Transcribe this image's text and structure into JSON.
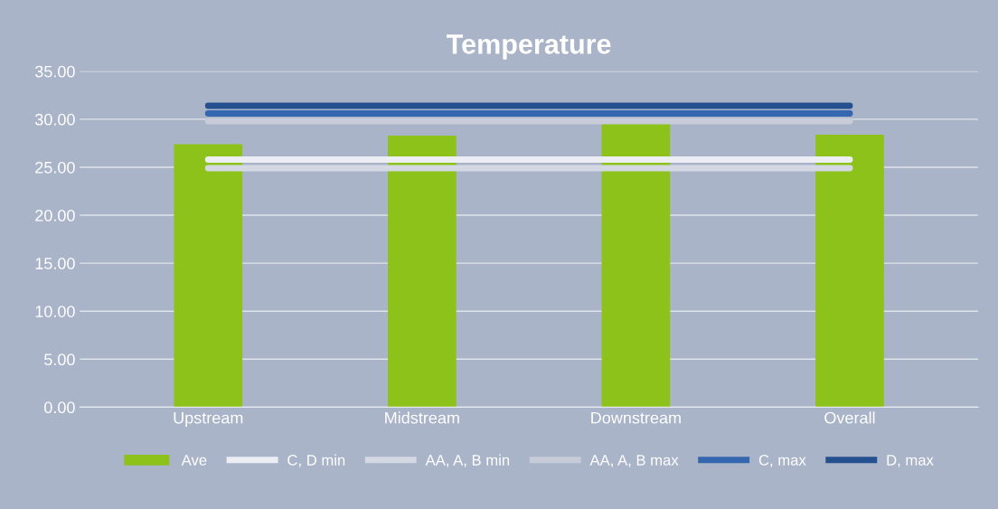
{
  "chart_data": {
    "type": "bar",
    "title": "Temperature",
    "categories": [
      "Upstream",
      "Midstream",
      "Downstream",
      "Overall"
    ],
    "series": [
      {
        "name": "Ave",
        "color": "#8cc21a",
        "values": [
          27.4,
          28.3,
          29.6,
          28.4
        ]
      },
      {
        "name": "C, D min",
        "type": "line",
        "color": "#eceef4",
        "values": [
          25.8,
          25.8,
          25.8,
          25.8
        ]
      },
      {
        "name": "AA, A, B min",
        "type": "line",
        "color": "#d4d8e2",
        "values": [
          24.9,
          24.9,
          24.9,
          24.9
        ]
      },
      {
        "name": "AA, A, B max",
        "type": "line",
        "color": "#c8ccd8",
        "values": [
          29.8,
          29.8,
          29.8,
          29.8
        ]
      },
      {
        "name": "C, max",
        "type": "line",
        "color": "#3566b0",
        "values": [
          30.6,
          30.6,
          30.6,
          30.6
        ]
      },
      {
        "name": "D, max",
        "type": "line",
        "color": "#24508f",
        "values": [
          31.4,
          31.4,
          31.4,
          31.4
        ]
      }
    ],
    "ylim": [
      0,
      35
    ],
    "yticks": [
      {
        "value": 0,
        "label": "0.00"
      },
      {
        "value": 5,
        "label": "5.00"
      },
      {
        "value": 10,
        "label": "10.00"
      },
      {
        "value": 15,
        "label": "15.00"
      },
      {
        "value": 20,
        "label": "20.00"
      },
      {
        "value": 25,
        "label": "25.00"
      },
      {
        "value": 30,
        "label": "30.00"
      },
      {
        "value": 35,
        "label": "35.00"
      }
    ],
    "grid": "y",
    "legend": "bottom",
    "marker": "none",
    "line_style": "solid"
  }
}
